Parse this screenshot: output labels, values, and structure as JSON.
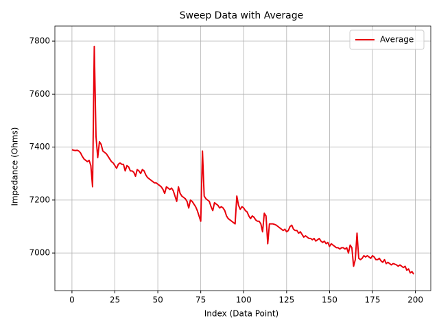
{
  "chart_data": {
    "type": "line",
    "title": "Sweep Data with Average",
    "x_label": "Index (Data Point)",
    "y_label": "Impedance (Ohms)",
    "xlim": [
      -9.95,
      208.95
    ],
    "xticks": [
      0,
      25,
      50,
      75,
      100,
      125,
      150,
      175,
      200
    ],
    "ylim": [
      6858,
      7857
    ],
    "yticks": [
      7000,
      7200,
      7400,
      7600,
      7800
    ],
    "grid": true,
    "legend": "upper right",
    "series": [
      {
        "name": "Average",
        "color": "#e8000b",
        "values": [
          7390,
          7388,
          7387,
          7388,
          7385,
          7378,
          7365,
          7355,
          7350,
          7345,
          7350,
          7330,
          7250,
          7780,
          7440,
          7360,
          7420,
          7410,
          7385,
          7380,
          7375,
          7365,
          7355,
          7345,
          7340,
          7330,
          7320,
          7335,
          7340,
          7335,
          7335,
          7310,
          7330,
          7325,
          7310,
          7310,
          7305,
          7290,
          7315,
          7310,
          7300,
          7315,
          7310,
          7295,
          7285,
          7280,
          7275,
          7270,
          7265,
          7265,
          7260,
          7255,
          7250,
          7240,
          7225,
          7250,
          7245,
          7240,
          7245,
          7235,
          7215,
          7195,
          7250,
          7225,
          7215,
          7210,
          7205,
          7195,
          7170,
          7200,
          7195,
          7185,
          7175,
          7160,
          7140,
          7120,
          7385,
          7215,
          7205,
          7200,
          7195,
          7175,
          7160,
          7190,
          7185,
          7180,
          7170,
          7175,
          7170,
          7160,
          7140,
          7130,
          7125,
          7120,
          7115,
          7110,
          7215,
          7180,
          7165,
          7175,
          7170,
          7160,
          7155,
          7140,
          7130,
          7140,
          7135,
          7125,
          7120,
          7120,
          7110,
          7080,
          7150,
          7140,
          7035,
          7110,
          7110,
          7110,
          7108,
          7105,
          7100,
          7095,
          7090,
          7085,
          7090,
          7080,
          7085,
          7100,
          7105,
          7090,
          7085,
          7085,
          7075,
          7080,
          7070,
          7060,
          7065,
          7060,
          7055,
          7055,
          7050,
          7055,
          7045,
          7050,
          7055,
          7045,
          7040,
          7045,
          7035,
          7040,
          7025,
          7035,
          7030,
          7025,
          7020,
          7020,
          7015,
          7020,
          7020,
          7015,
          7020,
          7000,
          7030,
          7020,
          6950,
          6975,
          7075,
          6980,
          6975,
          6980,
          6990,
          6985,
          6990,
          6985,
          6980,
          6990,
          6985,
          6975,
          6975,
          6980,
          6970,
          6965,
          6975,
          6960,
          6965,
          6960,
          6955,
          6960,
          6958,
          6955,
          6950,
          6955,
          6950,
          6945,
          6950,
          6935,
          6940,
          6925,
          6930,
          6920
        ]
      }
    ]
  }
}
